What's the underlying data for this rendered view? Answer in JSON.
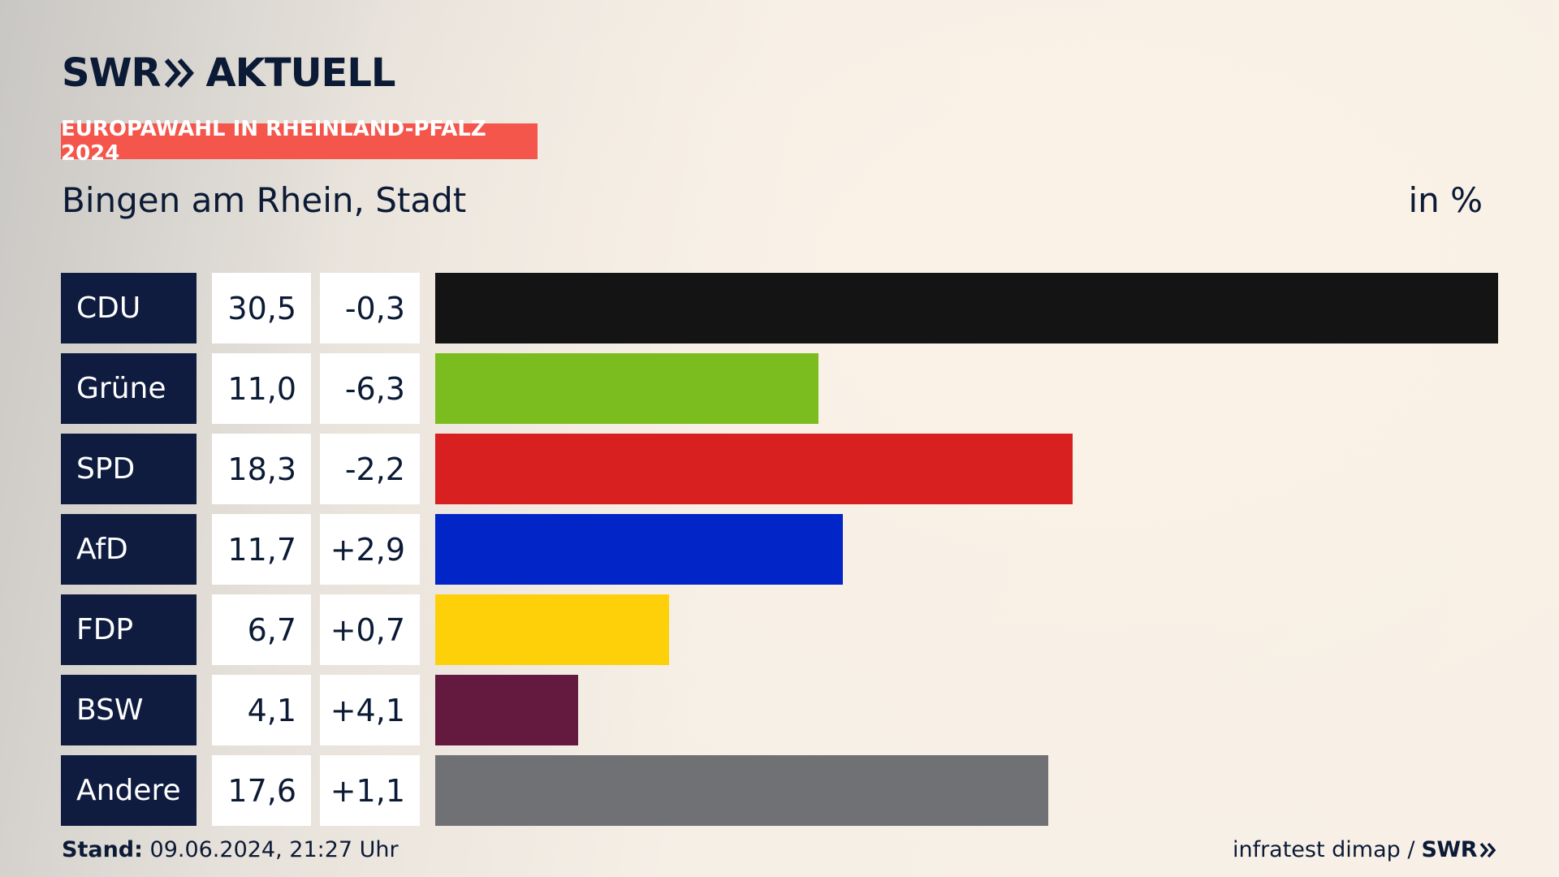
{
  "brand": {
    "logo_left": "SWR",
    "logo_right": "AKTUELL",
    "small_logo": "SWR"
  },
  "tag": "EUROPAWAHL IN RHEINLAND-PFALZ 2024",
  "region": "Bingen am Rhein, Stadt",
  "unit": "in %",
  "footer": {
    "stand_label": "Stand:",
    "stand_value": "09.06.2024, 21:27 Uhr",
    "source": "infratest dimap /"
  },
  "chart_data": {
    "type": "bar",
    "orientation": "horizontal",
    "title": "Europawahl in Rheinland-Pfalz 2024 – Bingen am Rhein, Stadt",
    "unit": "in %",
    "categories": [
      "CDU",
      "Grüne",
      "SPD",
      "AfD",
      "FDP",
      "BSW",
      "Andere"
    ],
    "values": [
      30.5,
      11.0,
      18.3,
      11.7,
      6.7,
      4.1,
      17.6
    ],
    "values_label": [
      "30,5",
      "11,0",
      "18,3",
      "11,7",
      "6,7",
      "4,1",
      "17,6"
    ],
    "diff_label": [
      "-0,3",
      "-6,3",
      "-2,2",
      "+2,9",
      "+0,7",
      "+4,1",
      "+1,1"
    ],
    "colors": [
      "#141414",
      "#7bbd1e",
      "#d7201f",
      "#0225c8",
      "#fed009",
      "#641a3e",
      "#707174"
    ],
    "xlim": [
      0,
      30.5
    ]
  }
}
